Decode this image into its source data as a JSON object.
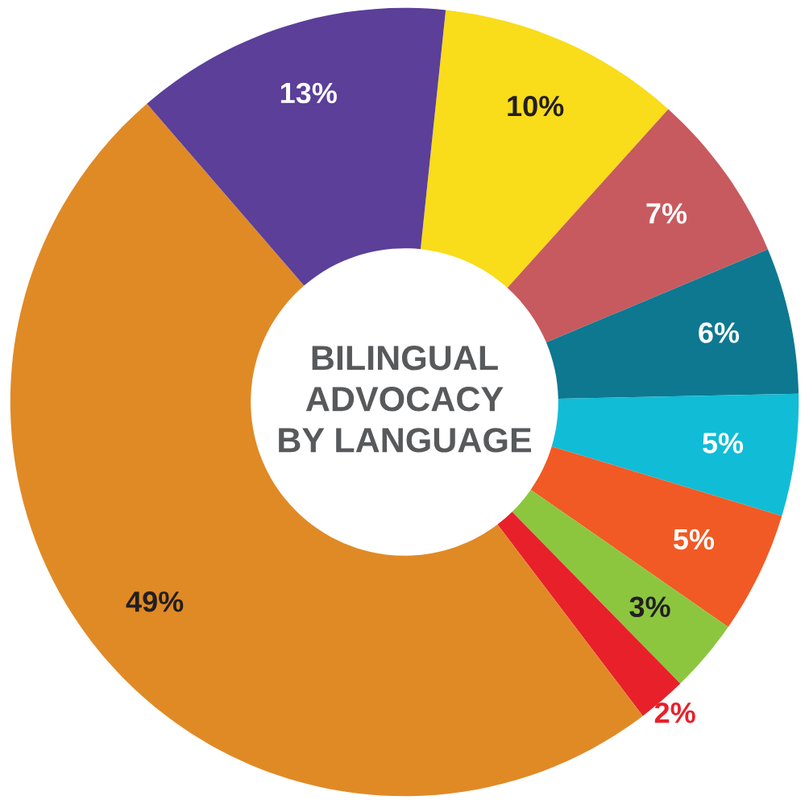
{
  "chart_data": {
    "type": "donut",
    "title": "BILINGUAL\nADVOCACY\nBY LANGUAGE",
    "categories": [
      null,
      null,
      null,
      null,
      null,
      null,
      null,
      null,
      null
    ],
    "values": [
      10,
      7,
      6,
      5,
      5,
      3,
      2,
      49,
      13
    ],
    "value_labels": [
      "10%",
      "7%",
      "6%",
      "5%",
      "5%",
      "3%",
      "2%",
      "49%",
      "13%"
    ],
    "colors": [
      "#f9dc1a",
      "#c75a5e",
      "#0e7891",
      "#11bcd6",
      "#f15a24",
      "#8cc63f",
      "#e8202a",
      "#e08a26",
      "#5b3f99"
    ],
    "legend": false
  }
}
